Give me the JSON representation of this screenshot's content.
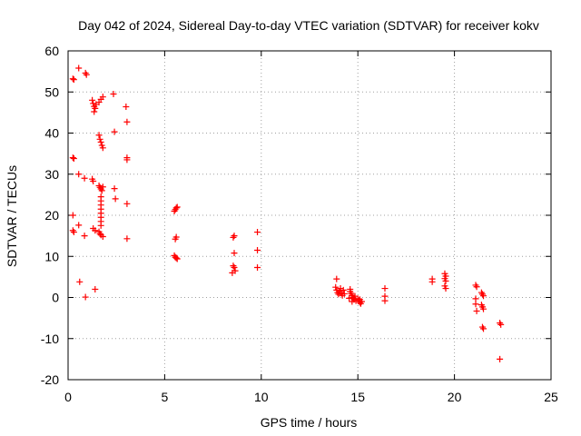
{
  "chart_data": {
    "type": "scatter",
    "title": "Day 042 of 2024, Sidereal Day-to-day VTEC variation (SDTVAR) for receiver kokv",
    "xlabel": "GPS time / hours",
    "ylabel": "SDTVAR / TECUs",
    "xlim": [
      0,
      25
    ],
    "ylim": [
      -20,
      60
    ],
    "xticks": [
      0,
      5,
      10,
      15,
      20,
      25
    ],
    "yticks": [
      -20,
      -10,
      0,
      10,
      20,
      30,
      40,
      50,
      60
    ],
    "xtick_labels": [
      "0",
      "5",
      "10",
      "15",
      "20",
      "25"
    ],
    "ytick_labels": [
      "-20",
      "-10",
      "0",
      "10",
      "20",
      "30",
      "40",
      "50",
      "60"
    ],
    "grid": true,
    "marker": "plus",
    "color": "#ff0000",
    "series": [
      {
        "name": "SDTVAR",
        "points": [
          [
            0.25,
            53.2
          ],
          [
            0.3,
            53.0
          ],
          [
            0.25,
            34.0
          ],
          [
            0.3,
            33.8
          ],
          [
            0.25,
            20.0
          ],
          [
            0.25,
            16.3
          ],
          [
            0.3,
            15.9
          ],
          [
            0.55,
            55.8
          ],
          [
            0.9,
            54.6
          ],
          [
            0.95,
            54.2
          ],
          [
            0.55,
            30.0
          ],
          [
            0.85,
            29.0
          ],
          [
            0.55,
            17.6
          ],
          [
            0.85,
            15.0
          ],
          [
            0.6,
            3.8
          ],
          [
            0.9,
            0.1
          ],
          [
            1.4,
            2.0
          ],
          [
            1.25,
            48.0
          ],
          [
            1.3,
            47.2
          ],
          [
            1.35,
            46.5
          ],
          [
            1.4,
            46.0
          ],
          [
            1.35,
            45.2
          ],
          [
            1.45,
            47.0
          ],
          [
            1.6,
            47.5
          ],
          [
            1.7,
            48.2
          ],
          [
            1.8,
            48.8
          ],
          [
            1.25,
            28.8
          ],
          [
            1.3,
            28.3
          ],
          [
            1.3,
            16.8
          ],
          [
            1.4,
            16.3
          ],
          [
            1.6,
            39.5
          ],
          [
            1.65,
            38.5
          ],
          [
            1.7,
            37.8
          ],
          [
            1.75,
            37.0
          ],
          [
            1.8,
            36.4
          ],
          [
            1.6,
            27.2
          ],
          [
            1.65,
            26.8
          ],
          [
            1.7,
            26.4
          ],
          [
            1.75,
            26.0
          ],
          [
            1.8,
            26.9
          ],
          [
            1.7,
            24.5
          ],
          [
            1.7,
            23.5
          ],
          [
            1.7,
            22.5
          ],
          [
            1.7,
            21.5
          ],
          [
            1.7,
            20.5
          ],
          [
            1.7,
            19.5
          ],
          [
            1.7,
            18.5
          ],
          [
            1.7,
            17.5
          ],
          [
            1.6,
            16.0
          ],
          [
            1.65,
            15.5
          ],
          [
            1.7,
            15.2
          ],
          [
            1.8,
            14.8
          ],
          [
            2.35,
            49.5
          ],
          [
            2.4,
            40.3
          ],
          [
            2.4,
            26.5
          ],
          [
            2.45,
            24.0
          ],
          [
            3.0,
            46.4
          ],
          [
            3.05,
            42.7
          ],
          [
            3.05,
            34.0
          ],
          [
            3.05,
            33.5
          ],
          [
            3.05,
            22.8
          ],
          [
            3.05,
            14.3
          ],
          [
            5.5,
            21.0
          ],
          [
            5.55,
            21.4
          ],
          [
            5.6,
            21.8
          ],
          [
            5.65,
            22.0
          ],
          [
            5.55,
            14.2
          ],
          [
            5.6,
            14.7
          ],
          [
            5.5,
            10.2
          ],
          [
            5.55,
            9.8
          ],
          [
            5.6,
            9.6
          ],
          [
            5.65,
            9.4
          ],
          [
            8.55,
            14.6
          ],
          [
            8.6,
            15.0
          ],
          [
            8.6,
            10.8
          ],
          [
            8.55,
            7.7
          ],
          [
            8.6,
            7.3
          ],
          [
            8.65,
            6.5
          ],
          [
            8.5,
            6.0
          ],
          [
            9.8,
            15.9
          ],
          [
            9.8,
            11.5
          ],
          [
            9.8,
            7.3
          ],
          [
            13.9,
            4.5
          ],
          [
            13.85,
            2.5
          ],
          [
            13.9,
            1.8
          ],
          [
            13.95,
            1.2
          ],
          [
            14.0,
            0.8
          ],
          [
            14.05,
            1.5
          ],
          [
            14.1,
            2.2
          ],
          [
            14.15,
            1.0
          ],
          [
            14.2,
            0.5
          ],
          [
            14.25,
            1.8
          ],
          [
            14.3,
            0.9
          ],
          [
            14.6,
            1.5
          ],
          [
            14.65,
            1.0
          ],
          [
            14.7,
            0.5
          ],
          [
            14.75,
            0.0
          ],
          [
            14.8,
            -0.5
          ],
          [
            14.85,
            0.3
          ],
          [
            14.9,
            -0.8
          ],
          [
            14.6,
            2.0
          ],
          [
            14.55,
            -0.2
          ],
          [
            14.7,
            -1.0
          ],
          [
            15.0,
            -0.3
          ],
          [
            15.05,
            -0.8
          ],
          [
            15.1,
            -1.2
          ],
          [
            15.15,
            -1.5
          ],
          [
            15.2,
            -1.0
          ],
          [
            15.1,
            -0.5
          ],
          [
            16.4,
            2.2
          ],
          [
            16.4,
            0.3
          ],
          [
            16.4,
            -0.8
          ],
          [
            18.85,
            4.5
          ],
          [
            18.85,
            3.8
          ],
          [
            19.5,
            5.8
          ],
          [
            19.55,
            5.2
          ],
          [
            19.5,
            4.6
          ],
          [
            19.55,
            4.0
          ],
          [
            19.5,
            2.8
          ],
          [
            19.55,
            2.2
          ],
          [
            21.1,
            3.0
          ],
          [
            21.15,
            2.6
          ],
          [
            21.1,
            -0.3
          ],
          [
            21.1,
            -1.6
          ],
          [
            21.15,
            -3.3
          ],
          [
            21.4,
            1.2
          ],
          [
            21.45,
            0.8
          ],
          [
            21.5,
            0.4
          ],
          [
            21.4,
            -1.8
          ],
          [
            21.45,
            -2.3
          ],
          [
            21.5,
            -2.8
          ],
          [
            21.45,
            -7.2
          ],
          [
            21.5,
            -7.6
          ],
          [
            22.35,
            -6.2
          ],
          [
            22.4,
            -6.6
          ],
          [
            22.35,
            -15.0
          ]
        ]
      }
    ]
  }
}
